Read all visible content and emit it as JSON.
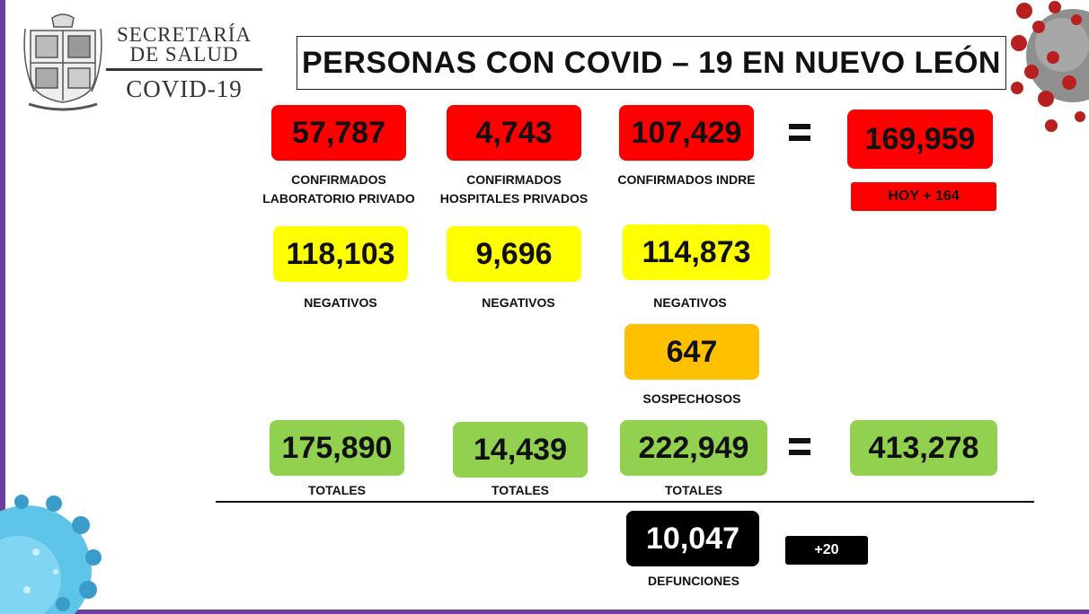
{
  "header": {
    "org_line1": "SECRETARÍA",
    "org_line2": "DE SALUD",
    "org_line3": "COVID-19",
    "title": "PERSONAS CON COVID – 19 EN NUEVO LEÓN"
  },
  "confirmed": {
    "lab_privado": {
      "value": "57,787",
      "label_l1": "CONFIRMADOS",
      "label_l2": "LABORATORIO PRIVADO"
    },
    "hospitales_privados": {
      "value": "4,743",
      "label_l1": "CONFIRMADOS",
      "label_l2": "HOSPITALES PRIVADOS"
    },
    "indre": {
      "value": "107,429",
      "label": "CONFIRMADOS INDRE"
    },
    "total": "169,959",
    "today": "HOY + 164"
  },
  "negatives": {
    "lab_privado": "118,103",
    "hospitales_privados": "9,696",
    "indre": "114,873",
    "label": "NEGATIVOS"
  },
  "suspects": {
    "value": "647",
    "label": "SOSPECHOSOS"
  },
  "totals": {
    "lab_privado": "175,890",
    "hospitales_privados": "14,439",
    "indre": "222,949",
    "grand_total": "413,278",
    "label": "TOTALES"
  },
  "deaths": {
    "value": "10,047",
    "label": "DEFUNCIONES",
    "today": "+20"
  },
  "colors": {
    "red": "#ff0000",
    "yellow": "#ffff00",
    "orange": "#ffc000",
    "green": "#92d050",
    "black": "#000000",
    "frame": "#6a3fa0"
  },
  "icons": [
    "nuevo-leon-coat-of-arms-icon",
    "coronavirus-icon"
  ]
}
